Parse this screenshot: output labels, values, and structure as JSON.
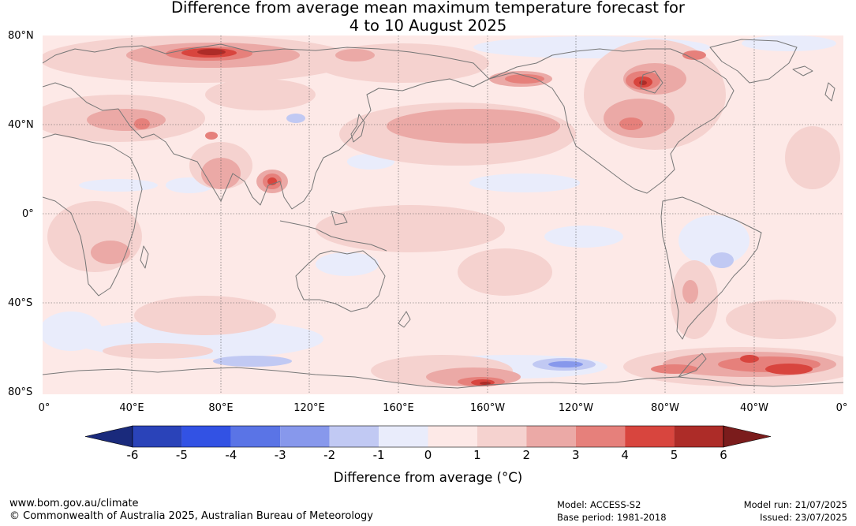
{
  "title": {
    "line1": "Difference from average mean maximum temperature forecast for",
    "line2": "4 to 10 August 2025"
  },
  "map": {
    "lat_labels": [
      "80°N",
      "40°N",
      "0°",
      "40°S",
      "80°S"
    ],
    "lon_labels": [
      "0°",
      "40°E",
      "80°E",
      "120°E",
      "160°E",
      "160°W",
      "120°W",
      "80°W",
      "40°W",
      "0°"
    ],
    "land_color": "#777777"
  },
  "colorbar": {
    "ticks": [
      "-6",
      "-5",
      "-4",
      "-3",
      "-2",
      "-1",
      "0",
      "1",
      "2",
      "3",
      "4",
      "5",
      "6"
    ],
    "colors": [
      "#1a2a7c",
      "#2a43b9",
      "#3252e4",
      "#5a74e6",
      "#8798ec",
      "#c1c9f3",
      "#e9ecfb",
      "#fde9e7",
      "#f5d2cf",
      "#eba9a6",
      "#e6807b",
      "#d8453e",
      "#ad2c28",
      "#7b1c1c"
    ],
    "label": "Difference from average (°C)"
  },
  "footer": {
    "website": "www.bom.gov.au/climate",
    "copyright": "© Commonwealth of Australia 2025, Australian Bureau of Meteorology",
    "model": "Model: ACCESS-S2",
    "base_period": "Base period: 1981-2018",
    "model_run": "Model run: 21/07/2025",
    "issued": "Issued: 23/07/2025"
  }
}
